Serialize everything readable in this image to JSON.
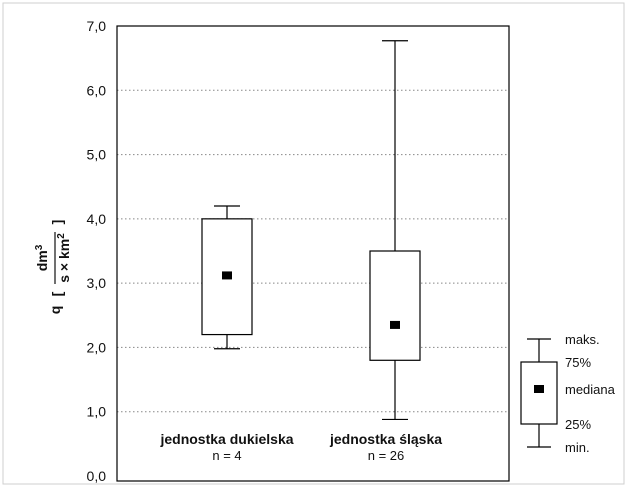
{
  "chart_data": {
    "type": "boxplot",
    "ylim": [
      0,
      7
    ],
    "yticks": [
      "0,0",
      "1,0",
      "2,0",
      "3,0",
      "4,0",
      "5,0",
      "6,0",
      "7,0"
    ],
    "ylabel": {
      "symbol": "q",
      "numerator": "dm",
      "numerator_sup": "3",
      "denominator": "s × km",
      "denominator_sup": "2"
    },
    "grid": "horizontal-dotted",
    "boxes": [
      {
        "category": "jednostka dukielska",
        "n_label": "n = 4",
        "min": 1.98,
        "q1": 2.2,
        "median": 3.12,
        "q3": 4.0,
        "max": 4.2
      },
      {
        "category": "jednostka śląska",
        "n_label": "n = 26",
        "min": 0.88,
        "q1": 1.8,
        "median": 2.35,
        "q3": 3.5,
        "max": 6.77
      }
    ],
    "legend": {
      "placement": "right-outside",
      "labels": {
        "max": "maks.",
        "q3": "75%",
        "median": "mediana",
        "q1": "25%",
        "min": "min."
      }
    }
  }
}
